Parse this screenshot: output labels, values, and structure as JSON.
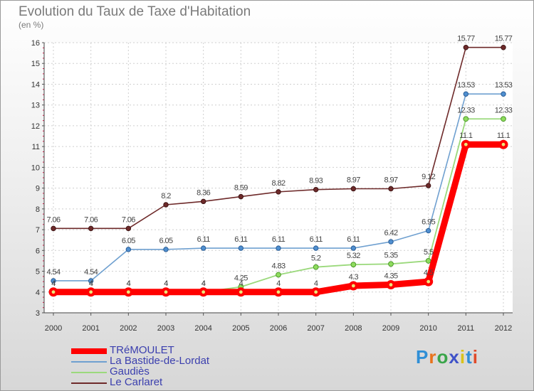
{
  "title": "Evolution du Taux de Taxe d'Habitation",
  "subtitle": "(en %)",
  "brand": {
    "text": "Proxiti",
    "colors": [
      "#2f8fd6",
      "#e8731c",
      "#3aa54a",
      "#3f52c8",
      "#d9c21b",
      "#2f8fd6",
      "#e04a2a"
    ]
  },
  "chart_data": {
    "type": "line",
    "x": [
      "2000",
      "2001",
      "2002",
      "2003",
      "2004",
      "2005",
      "2006",
      "2007",
      "2008",
      "2009",
      "2010",
      "2011",
      "2012"
    ],
    "ylim": [
      3,
      16
    ],
    "yticks": [
      "3",
      "4",
      "5",
      "6",
      "7",
      "8",
      "9",
      "10",
      "11",
      "12",
      "13",
      "14",
      "15",
      "16"
    ],
    "grid": true,
    "legend_position": "bottom-left",
    "series": [
      {
        "name": "Le Carlaret",
        "color": "#6e2a2a",
        "values": [
          7.06,
          7.06,
          7.06,
          8.2,
          8.36,
          8.59,
          8.82,
          8.93,
          8.97,
          8.97,
          9.12,
          15.77,
          15.77
        ],
        "labels": [
          "7.06",
          "7.06",
          "7.06",
          "8.2",
          "8.36",
          "8.59",
          "8.82",
          "8.93",
          "8.97",
          "8.97",
          "9.12",
          "15.77",
          "15.77"
        ]
      },
      {
        "name": "La Bastide-de-Lordat",
        "color": "#6fa0d0",
        "values": [
          4.54,
          4.54,
          6.05,
          6.05,
          6.11,
          6.11,
          6.11,
          6.11,
          6.11,
          6.42,
          6.95,
          13.53,
          13.53
        ],
        "labels": [
          "4.54",
          "4.54",
          "6.05",
          "6.05",
          "6.11",
          "6.11",
          "6.11",
          "6.11",
          "6.11",
          "6.42",
          "6.95",
          "13.53",
          "13.53"
        ]
      },
      {
        "name": "Gaudiès",
        "color": "#9bd97c",
        "values": [
          4,
          4,
          4,
          4,
          4,
          4.25,
          4.83,
          5.2,
          5.32,
          5.35,
          5.5,
          12.33,
          12.33
        ],
        "labels": [
          "4",
          "4",
          "4",
          "4",
          "4",
          "4.25",
          "4.83",
          "5.2",
          "5.32",
          "5.35",
          "5.5",
          "12.33",
          "12.33"
        ]
      },
      {
        "name": "TRéMOULET",
        "color": "#ff0000",
        "values": [
          4,
          4,
          4,
          4,
          4,
          4,
          4,
          4,
          4.3,
          4.35,
          4.5,
          11.1,
          11.1
        ],
        "labels": [
          "4",
          "4",
          "4",
          "4",
          "4",
          "4",
          "4",
          "4",
          "4.3",
          "4.35",
          "4.5",
          "11.1",
          "11.1"
        ]
      }
    ],
    "legend_order": [
      "TRéMOULET",
      "La Bastide-de-Lordat",
      "Gaudiès",
      "Le Carlaret"
    ]
  }
}
